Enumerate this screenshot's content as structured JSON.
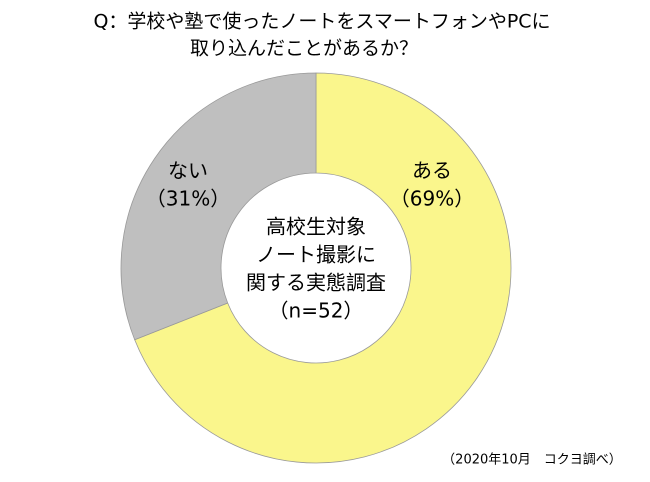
{
  "chart_data": {
    "type": "donut",
    "title": [
      "Q：学校や塾で使ったノートをスマートフォンやPCに",
      "取り込んだことがあるか？"
    ],
    "categories": [
      "ある",
      "ない"
    ],
    "values": [
      69,
      31
    ],
    "value_labels": [
      "（69%）",
      "（31%）"
    ],
    "colors": [
      "#faf68c",
      "#bfbfbf"
    ],
    "center_text": [
      "高校生対象",
      "ノート撮影に",
      "関する実態調査",
      "（n=52）"
    ],
    "source": "（2020年10月　コクヨ調べ）"
  }
}
